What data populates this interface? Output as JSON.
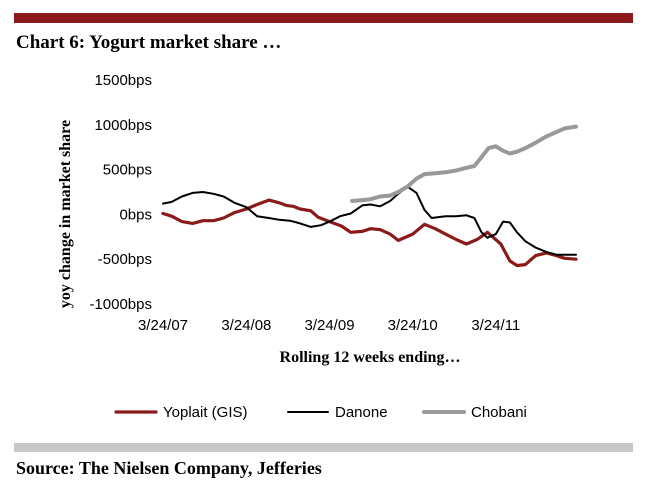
{
  "header": {
    "title": "Chart 6: Yogurt market share …"
  },
  "footer": {
    "source": "Source:  The Nielsen Company, Jefferies"
  },
  "colors": {
    "top_bar": "#8b1a1a",
    "bottom_bar": "#c8c8c8",
    "yoplait": "#8b1a1a",
    "danone": "#000000",
    "chobani": "#999999"
  },
  "chart_data": {
    "type": "line",
    "title": "Chart 6: Yogurt market share …",
    "xlabel": "Rolling 12 weeks ending…",
    "ylabel": "yoy change in market share",
    "y_unit": "bps",
    "ylim": [
      -1000,
      1500
    ],
    "xlim": [
      "2007-03-24",
      "2012-03-10"
    ],
    "y_ticks": [
      1500,
      1000,
      500,
      0,
      -500,
      -1000
    ],
    "y_tick_labels": [
      "1500bps",
      "1000bps",
      "500bps",
      "0bps",
      "-500bps",
      "-1000bps"
    ],
    "x_ticks": [
      "2007-03-24",
      "2008-03-24",
      "2009-03-24",
      "2010-03-24",
      "2011-03-24"
    ],
    "x_tick_labels": [
      "3/24/07",
      "3/24/08",
      "3/24/09",
      "3/24/10",
      "3/24/11"
    ],
    "grid": false,
    "legend_position": "bottom",
    "series": [
      {
        "name": "Yoplait (GIS)",
        "color": "#8b1a1a",
        "points": [
          [
            "2007-03-24",
            10
          ],
          [
            "2007-05-01",
            -20
          ],
          [
            "2007-06-15",
            -80
          ],
          [
            "2007-08-01",
            -100
          ],
          [
            "2007-09-15",
            -70
          ],
          [
            "2007-11-01",
            -70
          ],
          [
            "2007-12-15",
            -40
          ],
          [
            "2008-02-01",
            20
          ],
          [
            "2008-03-24",
            60
          ],
          [
            "2008-05-10",
            110
          ],
          [
            "2008-07-01",
            160
          ],
          [
            "2008-08-15",
            130
          ],
          [
            "2008-09-15",
            100
          ],
          [
            "2008-10-15",
            90
          ],
          [
            "2008-11-15",
            60
          ],
          [
            "2009-01-01",
            40
          ],
          [
            "2009-02-01",
            -30
          ],
          [
            "2009-03-24",
            -80
          ],
          [
            "2009-05-15",
            -130
          ],
          [
            "2009-06-25",
            -200
          ],
          [
            "2009-08-15",
            -190
          ],
          [
            "2009-09-20",
            -160
          ],
          [
            "2009-11-01",
            -170
          ],
          [
            "2009-12-15",
            -220
          ],
          [
            "2010-01-20",
            -290
          ],
          [
            "2010-03-24",
            -220
          ],
          [
            "2010-05-15",
            -110
          ],
          [
            "2010-07-01",
            -160
          ],
          [
            "2010-08-15",
            -220
          ],
          [
            "2010-10-01",
            -280
          ],
          [
            "2010-11-15",
            -330
          ],
          [
            "2011-01-01",
            -280
          ],
          [
            "2011-02-15",
            -200
          ],
          [
            "2011-04-15",
            -330
          ],
          [
            "2011-05-25",
            -520
          ],
          [
            "2011-06-25",
            -570
          ],
          [
            "2011-08-01",
            -560
          ],
          [
            "2011-09-15",
            -460
          ],
          [
            "2011-11-01",
            -430
          ],
          [
            "2011-12-15",
            -460
          ],
          [
            "2012-01-20",
            -490
          ],
          [
            "2012-03-10",
            -500
          ]
        ]
      },
      {
        "name": "Danone",
        "color": "#000000",
        "points": [
          [
            "2007-03-24",
            120
          ],
          [
            "2007-05-01",
            140
          ],
          [
            "2007-06-15",
            200
          ],
          [
            "2007-08-01",
            240
          ],
          [
            "2007-09-15",
            250
          ],
          [
            "2007-11-01",
            230
          ],
          [
            "2007-12-15",
            200
          ],
          [
            "2008-02-01",
            130
          ],
          [
            "2008-03-24",
            80
          ],
          [
            "2008-05-10",
            -20
          ],
          [
            "2008-07-01",
            -40
          ],
          [
            "2008-08-15",
            -60
          ],
          [
            "2008-10-01",
            -70
          ],
          [
            "2008-11-15",
            -100
          ],
          [
            "2009-01-01",
            -140
          ],
          [
            "2009-02-15",
            -120
          ],
          [
            "2009-03-24",
            -80
          ],
          [
            "2009-05-10",
            -20
          ],
          [
            "2009-06-25",
            10
          ],
          [
            "2009-08-15",
            100
          ],
          [
            "2009-09-20",
            110
          ],
          [
            "2009-11-01",
            90
          ],
          [
            "2009-12-15",
            150
          ],
          [
            "2010-01-20",
            230
          ],
          [
            "2010-03-01",
            310
          ],
          [
            "2010-04-10",
            240
          ],
          [
            "2010-05-15",
            50
          ],
          [
            "2010-06-15",
            -40
          ],
          [
            "2010-08-15",
            -20
          ],
          [
            "2010-10-01",
            -20
          ],
          [
            "2010-11-15",
            -10
          ],
          [
            "2010-12-20",
            -40
          ],
          [
            "2011-01-20",
            -200
          ],
          [
            "2011-02-15",
            -260
          ],
          [
            "2011-03-24",
            -220
          ],
          [
            "2011-04-25",
            -80
          ],
          [
            "2011-05-25",
            -90
          ],
          [
            "2011-06-25",
            -200
          ],
          [
            "2011-08-01",
            -300
          ],
          [
            "2011-09-15",
            -370
          ],
          [
            "2011-11-01",
            -420
          ],
          [
            "2011-12-15",
            -450
          ],
          [
            "2012-03-10",
            -450
          ]
        ]
      },
      {
        "name": "Chobani",
        "color": "#999999",
        "points": [
          [
            "2009-07-01",
            150
          ],
          [
            "2009-08-15",
            160
          ],
          [
            "2009-09-20",
            170
          ],
          [
            "2009-11-01",
            200
          ],
          [
            "2009-12-15",
            210
          ],
          [
            "2010-01-20",
            250
          ],
          [
            "2010-03-01",
            310
          ],
          [
            "2010-04-10",
            400
          ],
          [
            "2010-05-15",
            450
          ],
          [
            "2010-07-01",
            460
          ],
          [
            "2010-08-15",
            470
          ],
          [
            "2010-10-01",
            490
          ],
          [
            "2010-11-15",
            520
          ],
          [
            "2010-12-20",
            540
          ],
          [
            "2011-01-20",
            640
          ],
          [
            "2011-02-20",
            740
          ],
          [
            "2011-03-24",
            760
          ],
          [
            "2011-04-25",
            710
          ],
          [
            "2011-05-25",
            680
          ],
          [
            "2011-06-25",
            700
          ],
          [
            "2011-08-01",
            740
          ],
          [
            "2011-09-15",
            800
          ],
          [
            "2011-11-01",
            870
          ],
          [
            "2011-12-15",
            920
          ],
          [
            "2012-01-20",
            960
          ],
          [
            "2012-03-10",
            980
          ]
        ]
      }
    ]
  }
}
